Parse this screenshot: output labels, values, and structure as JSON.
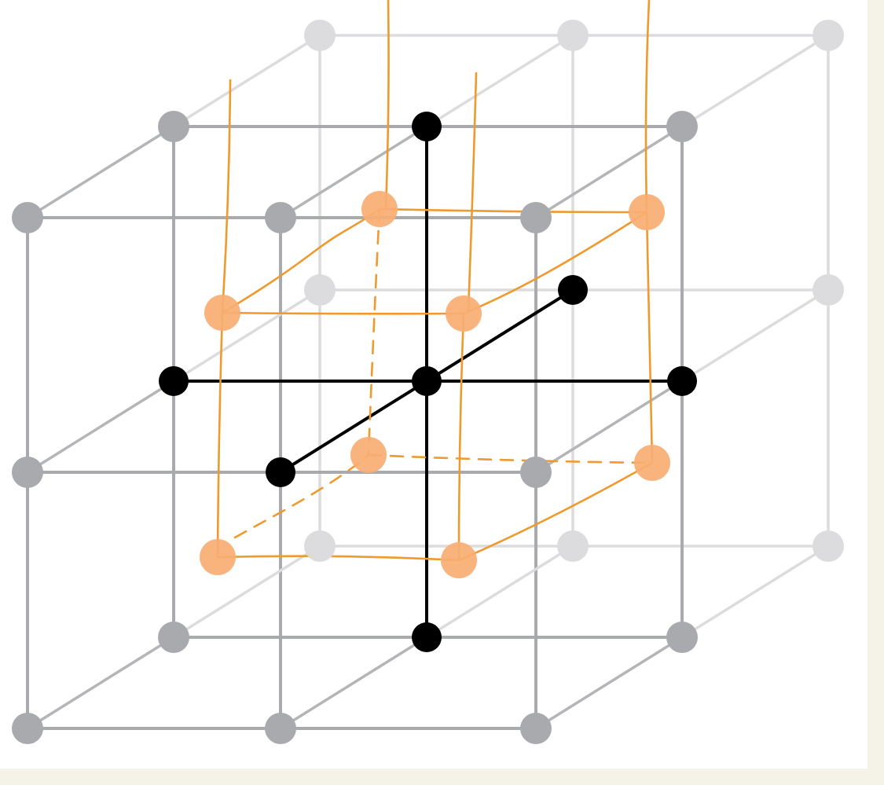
{
  "diagram": {
    "background_color": "#f5f3e7",
    "panel_color": "#ffffff",
    "colors": {
      "back_plane": "#dcdcde",
      "middle_plane": "#a9aaae",
      "front_plane": "#a9aaae",
      "axes": "#000000",
      "highlight_fill": "#f8ae73",
      "highlight_stroke": "#ee9a2f"
    },
    "lattice": {
      "size": 3,
      "node_style": "filled-circle",
      "axis_nodes": 7
    },
    "highlight": {
      "corner_count": 8,
      "hidden_edges_dashed": true,
      "vertical_tails": true
    }
  }
}
